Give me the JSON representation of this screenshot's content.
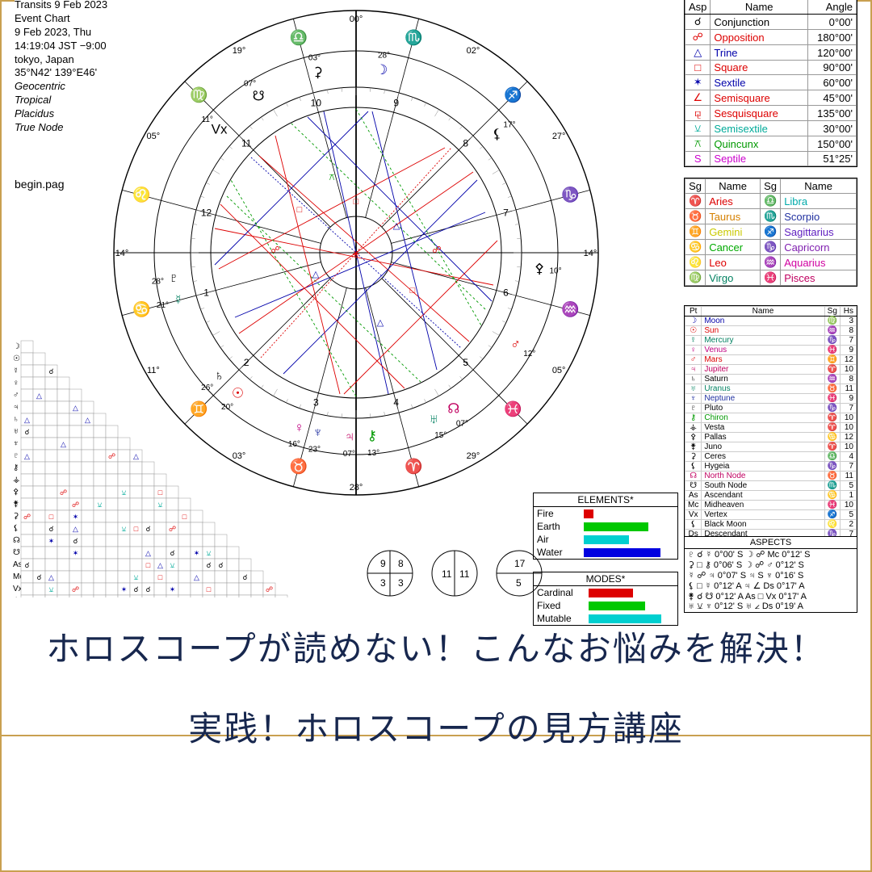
{
  "meta": {
    "line1": "Transits 9 Feb 2023",
    "line2": "Event Chart",
    "line3": "9 Feb 2023, Thu",
    "line4": "14:19:04 JST −9:00",
    "line5": "tokyo, Japan",
    "line6": "35°N42' 139°E46'",
    "line7": "Geocentric",
    "line8": "Tropical",
    "line9": "Placidus",
    "line10": "True Node"
  },
  "begin_label": "begin.pag",
  "aspects_tbl": {
    "h1": "Asp",
    "h2": "Name",
    "h3": "Angle",
    "rows": [
      {
        "s": "☌",
        "n": "Conjunction",
        "a": "0°00'",
        "c": "#000"
      },
      {
        "s": "☍",
        "n": "Opposition",
        "a": "180°00'",
        "c": "#d00"
      },
      {
        "s": "△",
        "n": "Trine",
        "a": "120°00'",
        "c": "#00a"
      },
      {
        "s": "□",
        "n": "Square",
        "a": "90°00'",
        "c": "#d00"
      },
      {
        "s": "✶",
        "n": "Sextile",
        "a": "60°00'",
        "c": "#00a"
      },
      {
        "s": "∠",
        "n": "Semisquare",
        "a": "45°00'",
        "c": "#d00"
      },
      {
        "s": "⚼",
        "n": "Sesquisquare",
        "a": "135°00'",
        "c": "#d00"
      },
      {
        "s": "⚺",
        "n": "Semisextile",
        "a": "30°00'",
        "c": "#0a9"
      },
      {
        "s": "⚻",
        "n": "Quincunx",
        "a": "150°00'",
        "c": "#090"
      },
      {
        "s": "S",
        "n": "Septile",
        "a": "51°25'",
        "c": "#c0c"
      }
    ]
  },
  "signs_tbl": {
    "h1": "Sg",
    "h2": "Name",
    "h3": "Sg",
    "h4": "Name",
    "rows": [
      {
        "s1": "♈",
        "n1": "Aries",
        "c1": "#d00",
        "s2": "♎",
        "n2": "Libra",
        "c2": "#0aa"
      },
      {
        "s1": "♉",
        "n1": "Taurus",
        "c1": "#d58000",
        "s2": "♏",
        "n2": "Scorpio",
        "c2": "#2030a0"
      },
      {
        "s1": "♊",
        "n1": "Gemini",
        "c1": "#c9c900",
        "s2": "♐",
        "n2": "Sagittarius",
        "c2": "#6020c0"
      },
      {
        "s1": "♋",
        "n1": "Cancer",
        "c1": "#0a0",
        "s2": "♑",
        "n2": "Capricorn",
        "c2": "#8020b0"
      },
      {
        "s1": "♌",
        "n1": "Leo",
        "c1": "#d00",
        "s2": "♒",
        "n2": "Aquarius",
        "c2": "#d000a0"
      },
      {
        "s1": "♍",
        "n1": "Virgo",
        "c1": "#008060",
        "s2": "♓",
        "n2": "Pisces",
        "c2": "#c00060"
      }
    ]
  },
  "planets_tbl": {
    "h1": "Pt",
    "h2": "Name",
    "h3": "Sg",
    "h4": "Hs",
    "rows": [
      {
        "p": "☽",
        "n": "Moon",
        "s": "♍",
        "h": "3",
        "c": "#00a"
      },
      {
        "p": "☉",
        "n": "Sun",
        "s": "♒",
        "h": "8",
        "c": "#d00"
      },
      {
        "p": "☿",
        "n": "Mercury",
        "s": "♑",
        "h": "7",
        "c": "#008060"
      },
      {
        "p": "♀",
        "n": "Venus",
        "s": "♓",
        "h": "9",
        "c": "#c00080"
      },
      {
        "p": "♂",
        "n": "Mars",
        "s": "♊",
        "h": "12",
        "c": "#d00"
      },
      {
        "p": "♃",
        "n": "Jupiter",
        "s": "♈",
        "h": "10",
        "c": "#c00060"
      },
      {
        "p": "♄",
        "n": "Saturn",
        "s": "♒",
        "h": "8",
        "c": "#000"
      },
      {
        "p": "♅",
        "n": "Uranus",
        "s": "♉",
        "h": "11",
        "c": "#008060"
      },
      {
        "p": "♆",
        "n": "Neptune",
        "s": "♓",
        "h": "9",
        "c": "#2030a0"
      },
      {
        "p": "♇",
        "n": "Pluto",
        "s": "♑",
        "h": "7",
        "c": "#000"
      },
      {
        "p": "⚷",
        "n": "Chiron",
        "s": "♈",
        "h": "10",
        "c": "#090"
      },
      {
        "p": "⚶",
        "n": "Vesta",
        "s": "♈",
        "h": "10",
        "c": "#000"
      },
      {
        "p": "⚴",
        "n": "Pallas",
        "s": "♋",
        "h": "12",
        "c": "#000"
      },
      {
        "p": "⚵",
        "n": "Juno",
        "s": "♈",
        "h": "10",
        "c": "#000"
      },
      {
        "p": "⚳",
        "n": "Ceres",
        "s": "♎",
        "h": "4",
        "c": "#000"
      },
      {
        "p": "⚸",
        "n": "Hygeia",
        "s": "♑",
        "h": "7",
        "c": "#000"
      },
      {
        "p": "☊",
        "n": "North Node",
        "s": "♉",
        "h": "11",
        "c": "#c00060"
      },
      {
        "p": "☋",
        "n": "South Node",
        "s": "♏",
        "h": "5",
        "c": "#000"
      },
      {
        "p": "As",
        "n": "Ascendant",
        "s": "♋",
        "h": "1",
        "c": "#000"
      },
      {
        "p": "Mc",
        "n": "Midheaven",
        "s": "♓",
        "h": "10",
        "c": "#000"
      },
      {
        "p": "Vx",
        "n": "Vertex",
        "s": "♐",
        "h": "5",
        "c": "#000"
      },
      {
        "p": "⚸",
        "n": "Black Moon",
        "s": "♌",
        "h": "2",
        "c": "#000"
      },
      {
        "p": "Ds",
        "n": "Descendant",
        "s": "♑",
        "h": "7",
        "c": "#000"
      }
    ]
  },
  "elements": {
    "title": "ELEMENTS*",
    "rows": [
      {
        "n": "Fire",
        "w": 12,
        "c": "#d00"
      },
      {
        "n": "Earth",
        "w": 80,
        "c": "#00c800"
      },
      {
        "n": "Air",
        "w": 56,
        "c": "#00d0d0"
      },
      {
        "n": "Water",
        "w": 95,
        "c": "#0000e0"
      }
    ]
  },
  "modes": {
    "title": "MODES*",
    "rows": [
      {
        "n": "Cardinal",
        "w": 55,
        "c": "#d00"
      },
      {
        "n": "Fixed",
        "w": 70,
        "c": "#00c800"
      },
      {
        "n": "Mutable",
        "w": 90,
        "c": "#00d0d0"
      }
    ]
  },
  "aspects_list": {
    "title": "ASPECTS",
    "rows": [
      "♇ ☌ ☿  0°00' S   ☽ ☍ Mc  0°12' S",
      "⚳ □ ⚷  0°06' S   ☽ ☍ ♂  0°12' S",
      "☿ ☍ ♃  0°07' S   ♃ S ♆  0°16' S",
      "⚸ □ ☿  0°12' A   ♃ ∠ Ds 0°17' A",
      "⚵ ☌ ☋  0°12' A   As □ Vx 0°17' A",
      "♅ ⚺ ♆  0°12' S   ♅ ∠ Ds 0°19' A"
    ]
  },
  "caption": {
    "l1": "ホロスコープが読めない！こんなお悩みを解決！",
    "l2": "実践！ホロスコープの見方講座"
  },
  "wheel": {
    "cusp_labels": [
      "03°",
      "28°",
      "29°",
      "05°",
      "14°",
      "27°",
      "02°",
      "00°",
      "11°",
      "05°",
      "14°",
      "27°",
      "19°",
      "11°",
      "05°"
    ],
    "cusp_signs": [
      "♉",
      "♓",
      "♒",
      "♒",
      "♑",
      "♐",
      "♐",
      "♐",
      "♊",
      "♌",
      "♋",
      "♍",
      "♌",
      "♊",
      "♌"
    ],
    "house_nums": [
      "1",
      "2",
      "3",
      "4",
      "5",
      "6",
      "7",
      "8",
      "9",
      "10",
      "11",
      "12"
    ],
    "colors": {
      "ring": "#000",
      "houses": "#000"
    }
  },
  "mini": {
    "a": [
      "9",
      "8",
      "3",
      "3"
    ],
    "b": [
      "11",
      "11"
    ],
    "c": [
      "17",
      "5"
    ]
  }
}
